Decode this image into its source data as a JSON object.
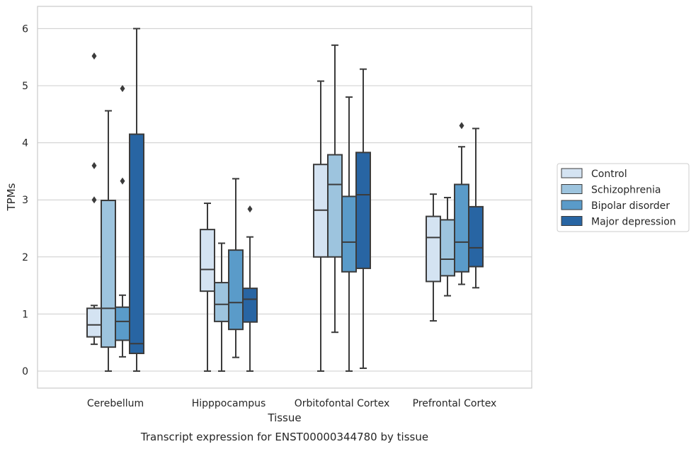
{
  "chart_data": {
    "type": "box",
    "title": "",
    "caption": "Transcript expression for ENST00000344780 by tissue",
    "xlabel": "Tissue",
    "ylabel": "TPMs",
    "ylim": [
      -0.3,
      6.3
    ],
    "yticks": [
      0,
      1,
      2,
      3,
      4,
      5,
      6
    ],
    "grid": true,
    "legend": "right",
    "categories": [
      "Cerebellum",
      "Hipppocampus",
      "Orbitofontal Cortex",
      "Prefrontal Cortex"
    ],
    "series": [
      {
        "name": "Control",
        "color": "#d4e3f2",
        "boxes": [
          {
            "whisker_low": 0.47,
            "q1": 0.6,
            "median": 0.81,
            "q3": 1.1,
            "whisker_high": 1.15,
            "outliers": [
              3.0,
              3.6,
              5.52
            ]
          },
          {
            "whisker_low": 0.0,
            "q1": 1.4,
            "median": 1.78,
            "q3": 2.48,
            "whisker_high": 2.94,
            "outliers": []
          },
          {
            "whisker_low": 0.0,
            "q1": 2.0,
            "median": 2.82,
            "q3": 3.62,
            "whisker_high": 5.08,
            "outliers": []
          },
          {
            "whisker_low": 0.88,
            "q1": 1.57,
            "median": 2.34,
            "q3": 2.71,
            "whisker_high": 3.1,
            "outliers": []
          }
        ]
      },
      {
        "name": "Schizophrenia",
        "color": "#9dc4de",
        "boxes": [
          {
            "whisker_low": 0.0,
            "q1": 0.42,
            "median": 1.1,
            "q3": 2.99,
            "whisker_high": 4.56,
            "outliers": []
          },
          {
            "whisker_low": 0.0,
            "q1": 0.87,
            "median": 1.17,
            "q3": 1.55,
            "whisker_high": 2.24,
            "outliers": []
          },
          {
            "whisker_low": 0.68,
            "q1": 2.0,
            "median": 3.27,
            "q3": 3.79,
            "whisker_high": 5.71,
            "outliers": []
          },
          {
            "whisker_low": 1.32,
            "q1": 1.67,
            "median": 1.96,
            "q3": 2.65,
            "whisker_high": 3.04,
            "outliers": []
          }
        ]
      },
      {
        "name": "Bipolar disorder",
        "color": "#5a9bc9",
        "boxes": [
          {
            "whisker_low": 0.25,
            "q1": 0.54,
            "median": 0.87,
            "q3": 1.12,
            "whisker_high": 1.33,
            "outliers": [
              3.33,
              4.95
            ]
          },
          {
            "whisker_low": 0.24,
            "q1": 0.73,
            "median": 1.2,
            "q3": 2.12,
            "whisker_high": 3.37,
            "outliers": []
          },
          {
            "whisker_low": 0.0,
            "q1": 1.74,
            "median": 2.26,
            "q3": 3.06,
            "whisker_high": 4.8,
            "outliers": []
          },
          {
            "whisker_low": 1.52,
            "q1": 1.74,
            "median": 2.26,
            "q3": 3.27,
            "whisker_high": 3.93,
            "outliers": [
              4.3
            ]
          }
        ]
      },
      {
        "name": "Major depression",
        "color": "#2865a3",
        "boxes": [
          {
            "whisker_low": 0.0,
            "q1": 0.31,
            "median": 0.48,
            "q3": 4.15,
            "whisker_high": 6.0,
            "outliers": []
          },
          {
            "whisker_low": 0.0,
            "q1": 0.86,
            "median": 1.26,
            "q3": 1.45,
            "whisker_high": 2.35,
            "outliers": [
              2.84
            ]
          },
          {
            "whisker_low": 0.05,
            "q1": 1.8,
            "median": 3.09,
            "q3": 3.83,
            "whisker_high": 5.29,
            "outliers": []
          },
          {
            "whisker_low": 1.46,
            "q1": 1.83,
            "median": 2.16,
            "q3": 2.88,
            "whisker_high": 4.25,
            "outliers": []
          }
        ]
      }
    ]
  }
}
